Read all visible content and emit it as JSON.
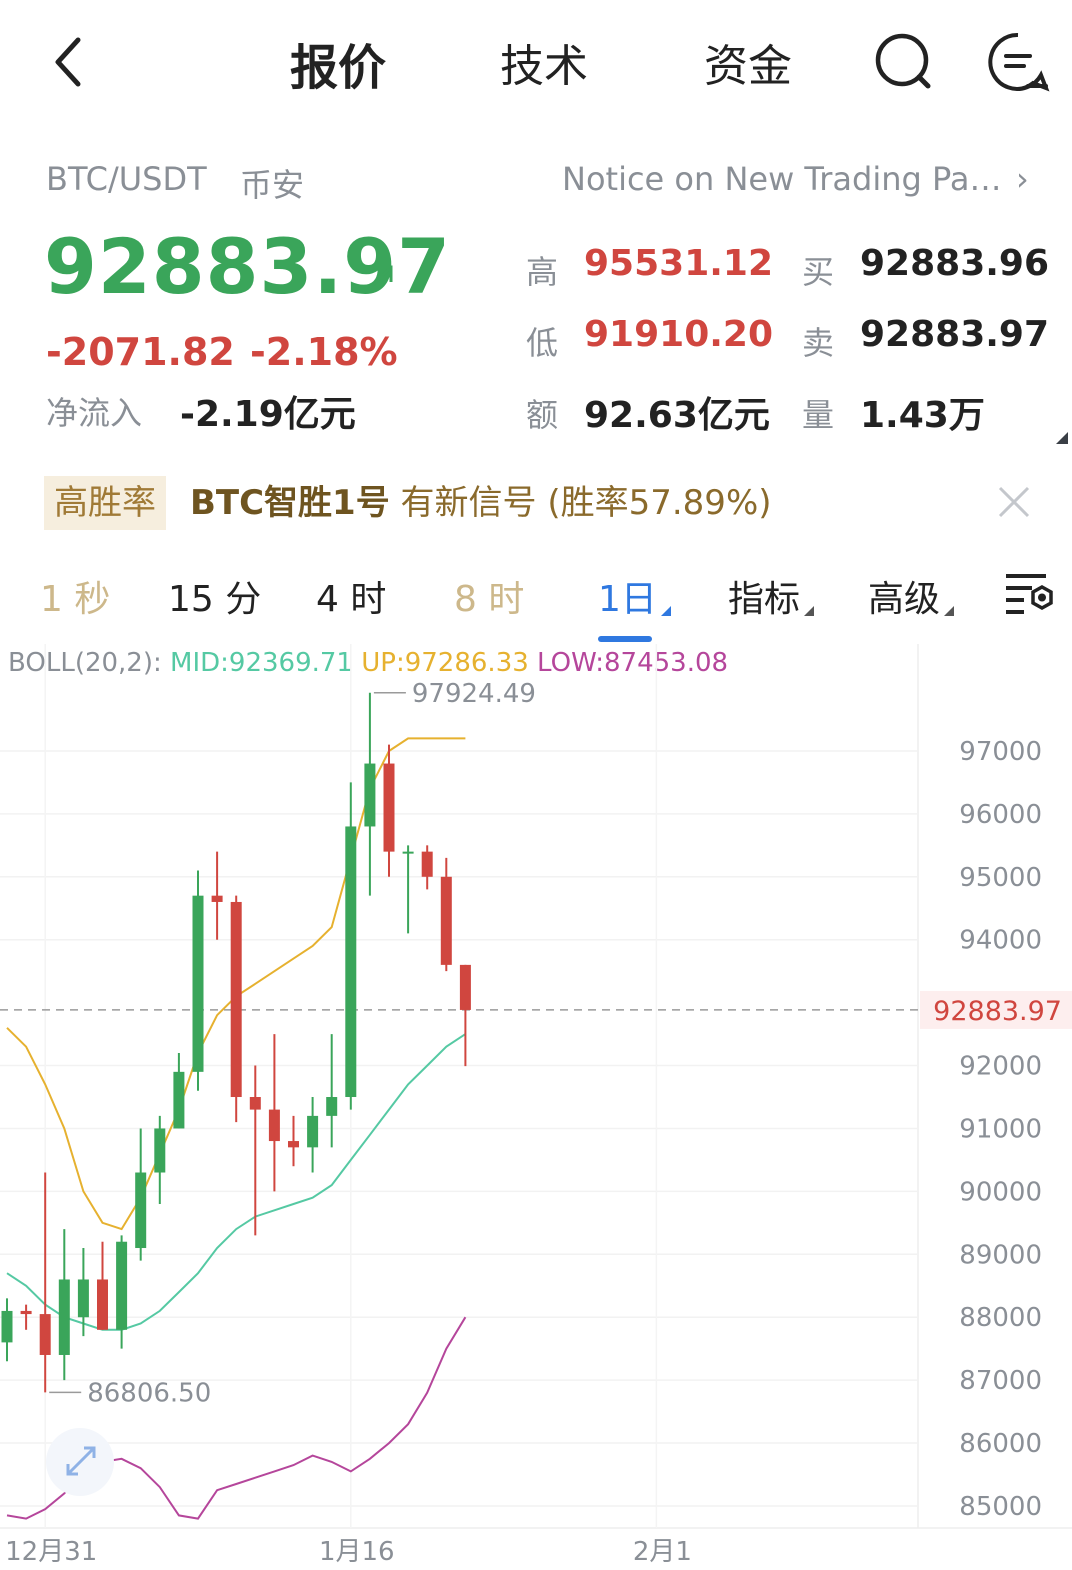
{
  "nav": {
    "tabs": [
      {
        "label": "报价",
        "active": true
      },
      {
        "label": "技术",
        "active": false
      },
      {
        "label": "资金",
        "active": false
      }
    ],
    "icons": [
      "back-arrow-icon",
      "search-icon",
      "message-icon"
    ]
  },
  "header": {
    "symbol": "BTC/USDT",
    "exchange": "币安",
    "notice": "Notice on New Trading Pair..."
  },
  "quote": {
    "last": "92883.97",
    "change": "-2071.82",
    "change_pct": "-2.18%",
    "inflow_label": "净流入",
    "inflow_value": "-2.19亿元",
    "high_label": "高",
    "high": "95531.12",
    "low_label": "低",
    "low": "91910.20",
    "amount_label": "额",
    "amount": "92.63亿元",
    "bid_label": "买",
    "bid": "92883.96",
    "ask_label": "卖",
    "ask": "92883.97",
    "volume_label": "量",
    "volume": "1.43万"
  },
  "signal": {
    "tag": "高胜率",
    "name": "BTC智胜1号",
    "text": "有新信号 (胜率57.89%)"
  },
  "intervals": [
    {
      "label": "1 秒",
      "state": "muted"
    },
    {
      "label": "15 分",
      "state": "normal"
    },
    {
      "label": "4 时",
      "state": "normal"
    },
    {
      "label": "8 时",
      "state": "muted"
    },
    {
      "label": "1日",
      "state": "active",
      "dropdown": true
    },
    {
      "label": "指标",
      "state": "normal",
      "dropdown": true
    },
    {
      "label": "高级",
      "state": "normal",
      "dropdown": true
    }
  ],
  "colors": {
    "up": "#3aa55a",
    "down": "#d0463f",
    "accent": "#2f78e0",
    "boll_mid": "#55c9a3",
    "boll_up": "#e6b12f",
    "boll_low": "#b5469b"
  },
  "chart_data": {
    "type": "candlestick",
    "indicator": {
      "name": "BOLL(20,2):",
      "mid_label": "MID:92369.71",
      "up_label": "UP:97286.33",
      "low_label": "LOW:87453.08"
    },
    "y_ticks": [
      "97000",
      "96000",
      "95000",
      "94000",
      "92000",
      "91000",
      "90000",
      "89000",
      "88000",
      "87000",
      "86000",
      "85000"
    ],
    "x_ticks": [
      "12月31",
      "1月16",
      "2月1"
    ],
    "x_tick_index": [
      2,
      18,
      34
    ],
    "current_price_label": "92883.97",
    "current_price": 92883.97,
    "max_label": "97924.49",
    "max_value": 97924.49,
    "min_label": "86806.50",
    "min_value": 86806.5,
    "ylim": [
      84650,
      98700
    ],
    "candles": [
      {
        "o": 87600,
        "h": 88300,
        "l": 87300,
        "c": 88100
      },
      {
        "o": 88100,
        "h": 88200,
        "l": 87800,
        "c": 88050
      },
      {
        "o": 88050,
        "h": 90300,
        "l": 86806.5,
        "c": 87400
      },
      {
        "o": 87400,
        "h": 89400,
        "l": 87000,
        "c": 88600
      },
      {
        "o": 88000,
        "h": 89100,
        "l": 87700,
        "c": 88600
      },
      {
        "o": 88600,
        "h": 89200,
        "l": 87800,
        "c": 87800
      },
      {
        "o": 87800,
        "h": 89300,
        "l": 87500,
        "c": 89200
      },
      {
        "o": 89100,
        "h": 91000,
        "l": 88900,
        "c": 90300
      },
      {
        "o": 90300,
        "h": 91200,
        "l": 89800,
        "c": 91000
      },
      {
        "o": 91000,
        "h": 92200,
        "l": 91000,
        "c": 91900
      },
      {
        "o": 91900,
        "h": 95100,
        "l": 91600,
        "c": 94700
      },
      {
        "o": 94700,
        "h": 95400,
        "l": 94000,
        "c": 94600
      },
      {
        "o": 94600,
        "h": 94700,
        "l": 91100,
        "c": 91500
      },
      {
        "o": 91500,
        "h": 92000,
        "l": 89300,
        "c": 91300
      },
      {
        "o": 91300,
        "h": 92500,
        "l": 90000,
        "c": 90800
      },
      {
        "o": 90800,
        "h": 91200,
        "l": 90400,
        "c": 90700
      },
      {
        "o": 90700,
        "h": 91500,
        "l": 90300,
        "c": 91200
      },
      {
        "o": 91200,
        "h": 92500,
        "l": 90700,
        "c": 91500
      },
      {
        "o": 91500,
        "h": 96500,
        "l": 91300,
        "c": 95800
      },
      {
        "o": 95800,
        "h": 97924.49,
        "l": 94700,
        "c": 96800
      },
      {
        "o": 96800,
        "h": 97100,
        "l": 95000,
        "c": 95400
      },
      {
        "o": 95400,
        "h": 95500,
        "l": 94100,
        "c": 95400
      },
      {
        "o": 95400,
        "h": 95500,
        "l": 94800,
        "c": 95000
      },
      {
        "o": 95000,
        "h": 95300,
        "l": 93500,
        "c": 93600
      },
      {
        "o": 93600,
        "h": 93600,
        "l": 91990,
        "c": 92883.97
      }
    ],
    "boll_up_series": [
      92600,
      92300,
      91700,
      91000,
      90000,
      89500,
      89400,
      89900,
      90600,
      91300,
      92200,
      92800,
      93100,
      93300,
      93500,
      93700,
      93900,
      94200,
      95300,
      96400,
      97000,
      97200,
      97200,
      97200,
      97200
    ],
    "boll_mid_series": [
      88700,
      88500,
      88200,
      88000,
      87900,
      87800,
      87800,
      87900,
      88100,
      88400,
      88700,
      89100,
      89400,
      89600,
      89700,
      89800,
      89900,
      90100,
      90500,
      90900,
      91300,
      91700,
      92000,
      92300,
      92500
    ],
    "boll_low_series": [
      84850,
      84800,
      84950,
      85200,
      85550,
      85700,
      85750,
      85600,
      85300,
      84850,
      84800,
      85250,
      85350,
      85450,
      85550,
      85650,
      85800,
      85700,
      85550,
      85750,
      86000,
      86300,
      86800,
      87500,
      88000
    ]
  }
}
